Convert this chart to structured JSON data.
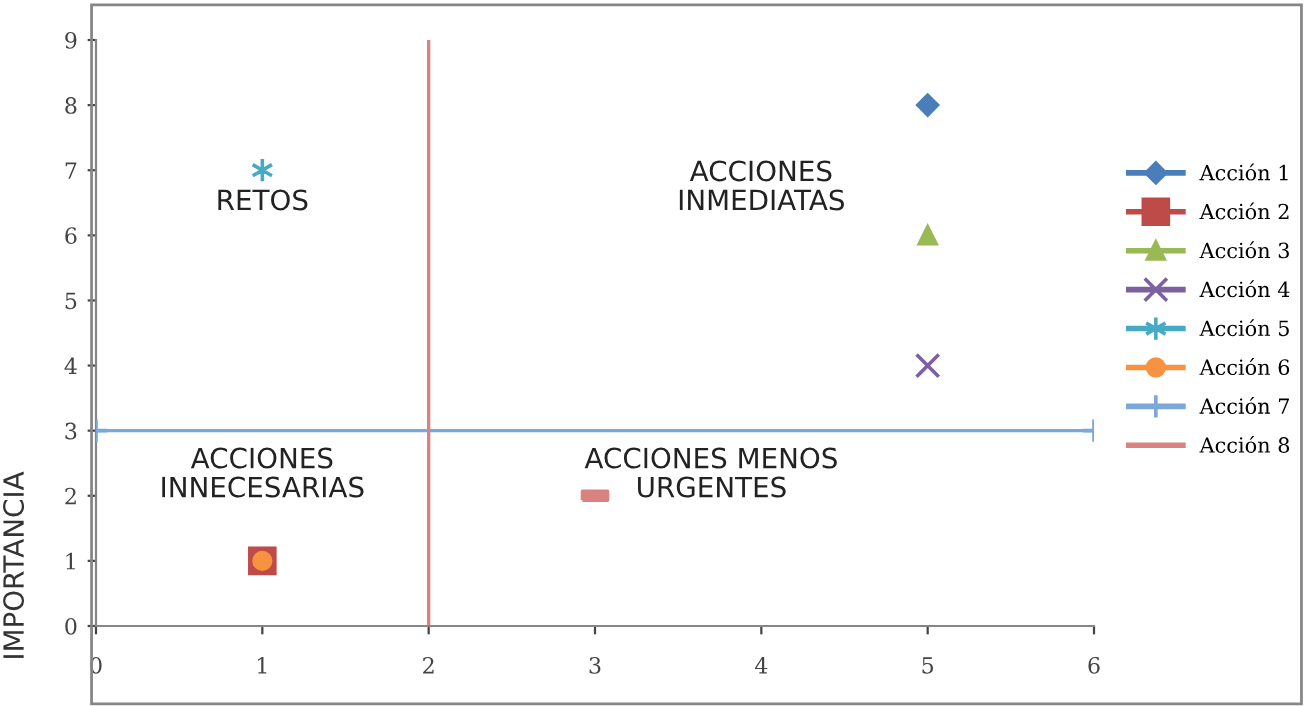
{
  "chart_data": {
    "type": "scatter",
    "ylabel": "IMPORTANCIA",
    "xlim": [
      0,
      6
    ],
    "xticks": [
      0,
      1,
      2,
      3,
      4,
      5,
      6
    ],
    "ylim": [
      0,
      9
    ],
    "yticks": [
      0,
      1,
      2,
      3,
      4,
      5,
      6,
      7,
      8,
      9
    ],
    "grid": false,
    "legend": "right",
    "series": [
      {
        "name": "Acción 1",
        "color": "#4a7ebb",
        "marker": "diamond",
        "x": [
          5
        ],
        "values": [
          8
        ]
      },
      {
        "name": "Acción 2",
        "color": "#be4b48",
        "marker": "square",
        "x": [
          1
        ],
        "values": [
          1
        ]
      },
      {
        "name": "Acción 3",
        "color": "#98b954",
        "marker": "triangle",
        "x": [
          5
        ],
        "values": [
          6
        ]
      },
      {
        "name": "Acción 4",
        "color": "#7d60a0",
        "marker": "x",
        "x": [
          5
        ],
        "values": [
          4
        ]
      },
      {
        "name": "Acción 5",
        "color": "#46aac5",
        "marker": "cross",
        "x": [
          1
        ],
        "values": [
          7
        ]
      },
      {
        "name": "Acción 6",
        "color": "#f69240",
        "marker": "circle",
        "x": [
          1
        ],
        "values": [
          1
        ]
      },
      {
        "name": "Acción 7",
        "color": "#7ba7d9",
        "type": "line",
        "marker": "cross",
        "x": [
          0,
          6
        ],
        "values": [
          3,
          3
        ]
      },
      {
        "name": "Acción 8",
        "color": "#d9827f",
        "type": "line",
        "x": [
          2,
          2
        ],
        "values": [
          0,
          9
        ]
      },
      {
        "color": "#d9827f",
        "marker": "square",
        "x": [
          3
        ],
        "values": [
          2
        ]
      }
    ],
    "annotations": [
      "RETOS",
      "ACCIONES\nINMEDIATAS",
      "ACCIONES\nINNECESARIAS",
      "ACCIONES MENOS\nURGENTES"
    ]
  }
}
